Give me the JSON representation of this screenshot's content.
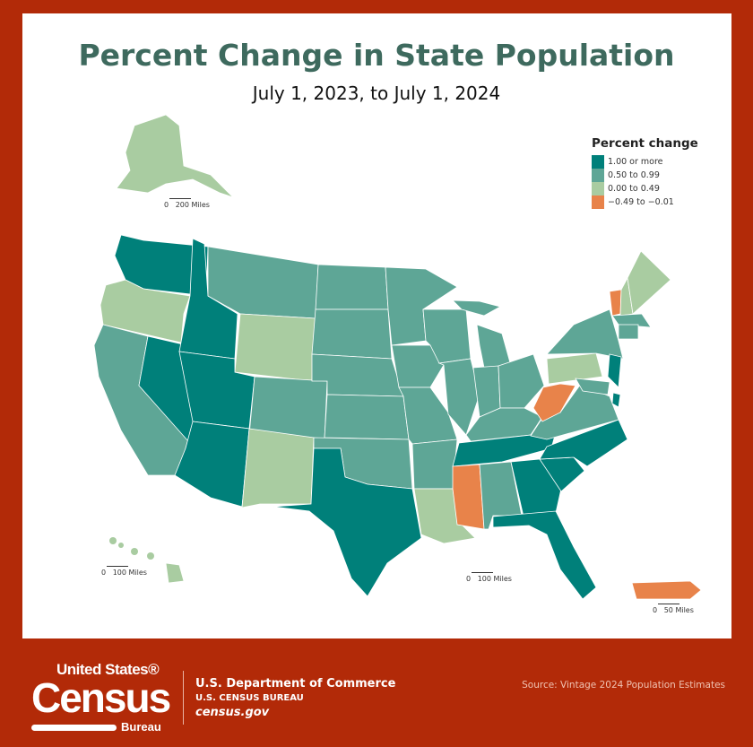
{
  "title": "Percent Change in State Population",
  "subtitle": "July 1, 2023, to July 1, 2024",
  "legend": {
    "title": "Percent change",
    "items": [
      {
        "label": "1.00 or more",
        "color": "#00807a"
      },
      {
        "label": "0.50 to 0.99",
        "color": "#5ea696"
      },
      {
        "label": "0.00 to 0.49",
        "color": "#a9cca1"
      },
      {
        "label": "−0.49 to −0.01",
        "color": "#e8834a"
      }
    ]
  },
  "state_category": {
    "WA": 0,
    "ID": 0,
    "NV": 0,
    "UT": 0,
    "AZ": 0,
    "TX": 0,
    "TN": 0,
    "NC": 0,
    "SC": 0,
    "GA": 0,
    "FL": 0,
    "NJ": 0,
    "DE": 0,
    "CA": 1,
    "MT": 1,
    "CO": 1,
    "ND": 1,
    "SD": 1,
    "NE": 1,
    "KS": 1,
    "OK": 1,
    "MN": 1,
    "IA": 1,
    "MO": 1,
    "AR": 1,
    "WI": 1,
    "IL": 1,
    "MI": 1,
    "IN": 1,
    "OH": 1,
    "KY": 1,
    "AL": 1,
    "VA": 1,
    "MD": 1,
    "NY": 1,
    "CT": 1,
    "MA": 1,
    "OR": 2,
    "WY": 2,
    "NM": 2,
    "LA": 2,
    "PA": 2,
    "ME": 2,
    "NH": 2,
    "AK": 2,
    "HI": 2,
    "VT": 3,
    "WV": 3,
    "MS": 3,
    "PR": 3
  },
  "scales": {
    "alaska": "0   200 Miles",
    "hawaii": "0   100 Miles",
    "mainland": "0   100 Miles",
    "puerto_rico": "0   50 Miles"
  },
  "footer": {
    "logo_text": "United States® Census Bureau",
    "logo_line1": "United States®",
    "logo_line2": "Census",
    "logo_line3": "Bureau",
    "department": "U.S. Department of Commerce",
    "bureau": "U.S. CENSUS BUREAU",
    "website": "census.gov",
    "source": "Source: Vintage 2024 Population Estimates"
  }
}
